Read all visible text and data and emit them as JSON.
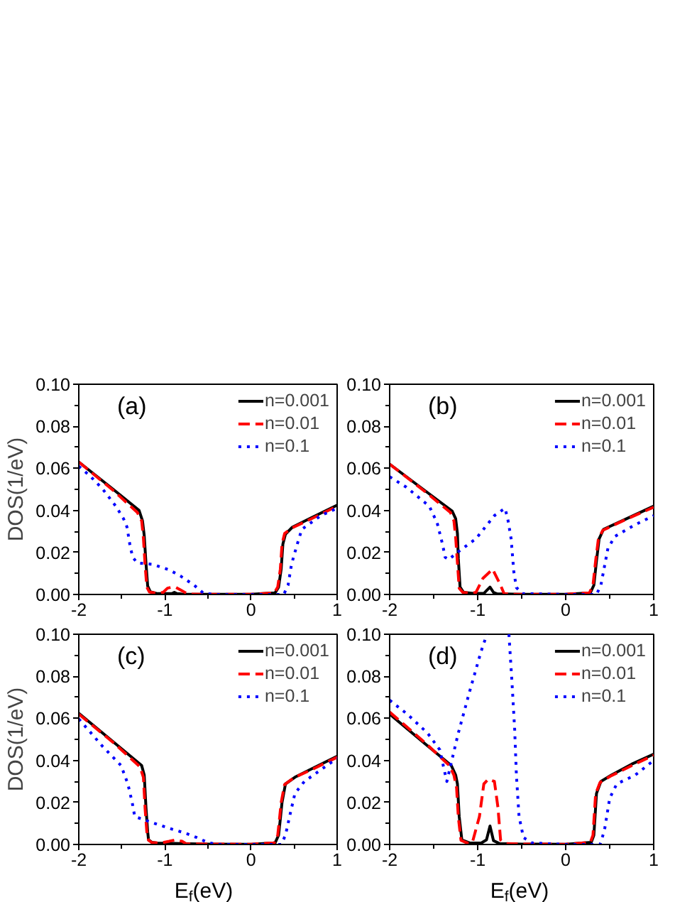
{
  "chart_data": [
    {
      "type": "line",
      "ylabel": "DOS(1/eV)",
      "annotations": [
        "(a)"
      ],
      "xlim": [
        -2,
        1
      ],
      "ylim": [
        0,
        0.1
      ],
      "xticks": [
        -2,
        -1,
        0,
        1
      ],
      "yticks": [
        {
          "value": 0,
          "label": "0.00"
        },
        {
          "value": 0.02,
          "label": "0.02"
        },
        {
          "value": 0.04,
          "label": "0.04"
        },
        {
          "value": 0.06,
          "label": "0.06"
        },
        {
          "value": 0.08,
          "label": "0.08"
        },
        {
          "value": 0.1,
          "label": "0.10"
        }
      ],
      "legend": "top right",
      "grid": false,
      "series": [
        {
          "name": "n=0.001",
          "color": "#000000",
          "line_style": "solid",
          "x": [
            -2,
            -1.6,
            -1.3,
            -1.26,
            -1.24,
            -1.22,
            -1.2,
            -1.17,
            -1.1,
            -1.0,
            -0.92,
            -0.89,
            -0.86,
            -0.8,
            -0.5,
            0,
            0.28,
            0.32,
            0.35,
            0.37,
            0.4,
            0.48,
            0.7,
            1.0
          ],
          "values": [
            0.063,
            0.05,
            0.04,
            0.035,
            0.028,
            0.015,
            0.004,
            0.0013,
            0.0005,
            0.0004,
            0.0004,
            0.001,
            0.0004,
            0.0002,
            0.0001,
            0.0001,
            0.0008,
            0.0035,
            0.012,
            0.024,
            0.0287,
            0.032,
            0.0365,
            0.0425
          ]
        },
        {
          "name": "n=0.01",
          "color": "#ff0000",
          "line_style": "dashed",
          "x": [
            -2,
            -1.6,
            -1.32,
            -1.27,
            -1.25,
            -1.23,
            -1.21,
            -1.18,
            -1.1,
            -1.02,
            -0.97,
            -0.92,
            -0.87,
            -0.82,
            -0.76,
            -0.72,
            -0.5,
            0,
            0.27,
            0.31,
            0.34,
            0.36,
            0.39,
            0.47,
            0.7,
            1.0
          ],
          "values": [
            0.063,
            0.0495,
            0.039,
            0.035,
            0.027,
            0.014,
            0.0035,
            0.0012,
            0.0006,
            0.001,
            0.003,
            0.0035,
            0.0033,
            0.0022,
            0.0008,
            0.0002,
            0.0001,
            0.0001,
            0.0008,
            0.0035,
            0.012,
            0.024,
            0.029,
            0.0315,
            0.036,
            0.042
          ]
        },
        {
          "name": "n=0.1",
          "color": "#0000ff",
          "line_style": "dotted",
          "x": [
            -2,
            -1.86,
            -1.72,
            -1.57,
            -1.48,
            -1.44,
            -1.4,
            -1.37,
            -1.32,
            -1.14,
            -0.95,
            -0.82,
            -0.66,
            -0.55,
            -0.4,
            0,
            0.38,
            0.43,
            0.47,
            0.53,
            0.59,
            0.81,
            1.0
          ],
          "values": [
            0.061,
            0.056,
            0.05,
            0.042,
            0.036,
            0.032,
            0.022,
            0.0175,
            0.015,
            0.0143,
            0.0117,
            0.0088,
            0.0044,
            0.0005,
            0,
            0,
            0,
            0.0044,
            0.0143,
            0.023,
            0.031,
            0.0375,
            0.041
          ]
        }
      ]
    },
    {
      "type": "line",
      "annotations": [
        "(b)"
      ],
      "xlim": [
        -2,
        1
      ],
      "ylim": [
        0,
        0.1
      ],
      "xticks": [
        -2,
        -1,
        0,
        1
      ],
      "yticks": [
        {
          "value": 0,
          "label": "0.00"
        },
        {
          "value": 0.02,
          "label": "0.02"
        },
        {
          "value": 0.04,
          "label": "0.04"
        },
        {
          "value": 0.06,
          "label": "0.06"
        },
        {
          "value": 0.08,
          "label": "0.08"
        },
        {
          "value": 0.1,
          "label": "0.10"
        }
      ],
      "legend": "top right",
      "grid": false,
      "series": [
        {
          "name": "n=0.001",
          "color": "#000000",
          "line_style": "solid",
          "x": [
            -2,
            -1.6,
            -1.29,
            -1.25,
            -1.23,
            -1.22,
            -1.2,
            -1.16,
            -1.05,
            -0.93,
            -0.9,
            -0.86,
            -0.82,
            -0.78,
            -0.5,
            0,
            0.28,
            0.32,
            0.35,
            0.38,
            0.43,
            0.7,
            1.0
          ],
          "values": [
            0.062,
            0.0494,
            0.0397,
            0.036,
            0.029,
            0.017,
            0.0035,
            0.001,
            0.0005,
            0.0005,
            0.0018,
            0.0035,
            0.001,
            0.0003,
            0.0001,
            0.0001,
            0.0008,
            0.0044,
            0.016,
            0.0265,
            0.031,
            0.0362,
            0.042
          ]
        },
        {
          "name": "n=0.01",
          "color": "#ff0000",
          "line_style": "dashed",
          "x": [
            -2,
            -1.6,
            -1.31,
            -1.27,
            -1.25,
            -1.23,
            -1.21,
            -1.17,
            -1.08,
            -1.02,
            -0.94,
            -0.83,
            -0.74,
            -0.7,
            -0.6,
            0,
            0.27,
            0.31,
            0.34,
            0.37,
            0.42,
            0.7,
            1.0
          ],
          "values": [
            0.062,
            0.049,
            0.039,
            0.035,
            0.027,
            0.015,
            0.003,
            0.001,
            0.0006,
            0.001,
            0.0077,
            0.012,
            0.0044,
            0.0004,
            0.0001,
            0.0001,
            0.0008,
            0.0044,
            0.016,
            0.026,
            0.0305,
            0.036,
            0.0415
          ]
        },
        {
          "name": "n=0.1",
          "color": "#0000ff",
          "line_style": "dotted",
          "x": [
            -2,
            -1.81,
            -1.55,
            -1.46,
            -1.4,
            -1.37,
            -1.33,
            -1.23,
            -1.02,
            -0.81,
            -0.69,
            -0.66,
            -0.62,
            -0.59,
            -0.56,
            -0.49,
            0,
            0.35,
            0.4,
            0.44,
            0.48,
            0.56,
            0.78,
            1.0
          ],
          "values": [
            0.056,
            0.051,
            0.042,
            0.034,
            0.024,
            0.0177,
            0.0166,
            0.02,
            0.0265,
            0.0375,
            0.041,
            0.0364,
            0.0265,
            0.011,
            0.0033,
            0.0004,
            0,
            0,
            0.0044,
            0.0132,
            0.022,
            0.0276,
            0.033,
            0.0375
          ]
        }
      ]
    },
    {
      "type": "line",
      "xlabel": "E$_{f}$(eV)",
      "ylabel": "DOS(1/eV)",
      "annotations": [
        "(c)"
      ],
      "xlim": [
        -2,
        1
      ],
      "ylim": [
        0,
        0.1
      ],
      "xticks": [
        -2,
        -1,
        0,
        1
      ],
      "yticks": [
        {
          "value": 0,
          "label": "0.00"
        },
        {
          "value": 0.02,
          "label": "0.02"
        },
        {
          "value": 0.04,
          "label": "0.04"
        },
        {
          "value": 0.06,
          "label": "0.06"
        },
        {
          "value": 0.08,
          "label": "0.08"
        },
        {
          "value": 0.1,
          "label": "0.10"
        }
      ],
      "legend": "top right",
      "grid": false,
      "series": [
        {
          "name": "n=0.001",
          "color": "#000000",
          "line_style": "solid",
          "x": [
            -2,
            -1.6,
            -1.27,
            -1.24,
            -1.22,
            -1.2,
            -1.19,
            -1.15,
            -1.09,
            -0.9,
            -0.5,
            0,
            0.28,
            0.32,
            0.34,
            0.36,
            0.4,
            0.51,
            0.7,
            1.0
          ],
          "values": [
            0.0624,
            0.0488,
            0.0376,
            0.033,
            0.0177,
            0.006,
            0.0022,
            0.001,
            0.0007,
            0.0005,
            0.0002,
            0.0001,
            0.0008,
            0.0044,
            0.012,
            0.02,
            0.0288,
            0.032,
            0.0359,
            0.042
          ]
        },
        {
          "name": "n=0.01",
          "color": "#ff0000",
          "line_style": "dashed",
          "x": [
            -2,
            -1.6,
            -1.29,
            -1.25,
            -1.23,
            -1.21,
            -1.19,
            -1.15,
            -1.05,
            -0.95,
            -0.88,
            -0.8,
            -0.75,
            -0.5,
            0,
            0.27,
            0.31,
            0.33,
            0.35,
            0.39,
            0.5,
            0.7,
            1.0
          ],
          "values": [
            0.062,
            0.0485,
            0.037,
            0.032,
            0.017,
            0.006,
            0.002,
            0.0009,
            0.0007,
            0.0015,
            0.0022,
            0.0015,
            0.0003,
            0.0002,
            0.0001,
            0.0008,
            0.0044,
            0.012,
            0.02,
            0.0285,
            0.0318,
            0.0355,
            0.0415
          ]
        },
        {
          "name": "n=0.1",
          "color": "#0000ff",
          "line_style": "dotted",
          "x": [
            -2,
            -1.72,
            -1.51,
            -1.43,
            -1.38,
            -1.35,
            -1.19,
            -0.95,
            -0.77,
            -0.63,
            -0.5,
            -0.39,
            0,
            0.35,
            0.4,
            0.46,
            0.51,
            0.62,
            1.0
          ],
          "values": [
            0.0597,
            0.0465,
            0.0376,
            0.0288,
            0.02,
            0.0133,
            0.011,
            0.0077,
            0.0055,
            0.0033,
            0.0009,
            0,
            0,
            0,
            0.0044,
            0.0155,
            0.0243,
            0.03,
            0.041
          ]
        }
      ]
    },
    {
      "type": "line",
      "xlabel": "E$_{f}$(eV)",
      "annotations": [
        "(d)"
      ],
      "xlim": [
        -2,
        1
      ],
      "ylim": [
        0,
        0.1
      ],
      "xticks": [
        -2,
        -1,
        0,
        1
      ],
      "yticks": [
        {
          "value": 0,
          "label": "0.00"
        },
        {
          "value": 0.02,
          "label": "0.02"
        },
        {
          "value": 0.04,
          "label": "0.04"
        },
        {
          "value": 0.06,
          "label": "0.06"
        },
        {
          "value": 0.08,
          "label": "0.08"
        },
        {
          "value": 0.1,
          "label": "0.10"
        }
      ],
      "legend": "top right",
      "grid": false,
      "series": [
        {
          "name": "n=0.001",
          "color": "#000000",
          "line_style": "solid",
          "x": [
            -2,
            -1.6,
            -1.3,
            -1.25,
            -1.23,
            -1.21,
            -1.18,
            -1.09,
            -0.96,
            -0.9,
            -0.86,
            -0.82,
            -0.75,
            -0.5,
            0,
            0.29,
            0.32,
            0.35,
            0.4,
            0.52,
            0.75,
            1.0
          ],
          "values": [
            0.062,
            0.048,
            0.0376,
            0.033,
            0.0288,
            0.0133,
            0.0022,
            0.0007,
            0.0007,
            0.0022,
            0.0088,
            0.0018,
            0.0004,
            0.0002,
            0.0001,
            0.001,
            0.0044,
            0.0243,
            0.03,
            0.033,
            0.0382,
            0.043
          ]
        },
        {
          "name": "n=0.01",
          "color": "#ff0000",
          "line_style": "dashed",
          "x": [
            -2,
            -1.6,
            -1.32,
            -1.27,
            -1.24,
            -1.22,
            -1.19,
            -1.12,
            -1.06,
            -0.98,
            -0.93,
            -0.88,
            -0.81,
            -0.77,
            -0.74,
            -0.67,
            -0.5,
            0,
            0.28,
            0.31,
            0.34,
            0.39,
            0.51,
            0.75,
            1.0
          ],
          "values": [
            0.063,
            0.0485,
            0.0375,
            0.033,
            0.027,
            0.013,
            0.002,
            0.0007,
            0.001,
            0.0133,
            0.0288,
            0.031,
            0.03,
            0.0177,
            0.0022,
            0.0004,
            0.0002,
            0.0001,
            0.001,
            0.0044,
            0.024,
            0.0295,
            0.0325,
            0.0375,
            0.0425
          ]
        },
        {
          "name": "n=0.1",
          "color": "#0000ff",
          "line_style": "dotted",
          "x": [
            -2,
            -1.8,
            -1.57,
            -1.43,
            -1.38,
            -1.35,
            -1.32,
            -1.22,
            -1.09,
            -0.96,
            -0.895,
            -0.77,
            -0.645,
            -0.61,
            -0.58,
            -0.56,
            -0.53,
            -0.48,
            -0.38,
            0,
            0.39,
            0.44,
            0.5,
            0.58,
            0.79,
            1.0
          ],
          "values": [
            0.0686,
            0.062,
            0.053,
            0.045,
            0.0354,
            0.03,
            0.0354,
            0.053,
            0.073,
            0.092,
            0.1,
            null,
            0.1,
            0.077,
            0.055,
            0.033,
            0.0133,
            0.0033,
            0.0007,
            0,
            0,
            0.0066,
            0.022,
            0.0288,
            0.033,
            0.04
          ]
        }
      ]
    }
  ]
}
